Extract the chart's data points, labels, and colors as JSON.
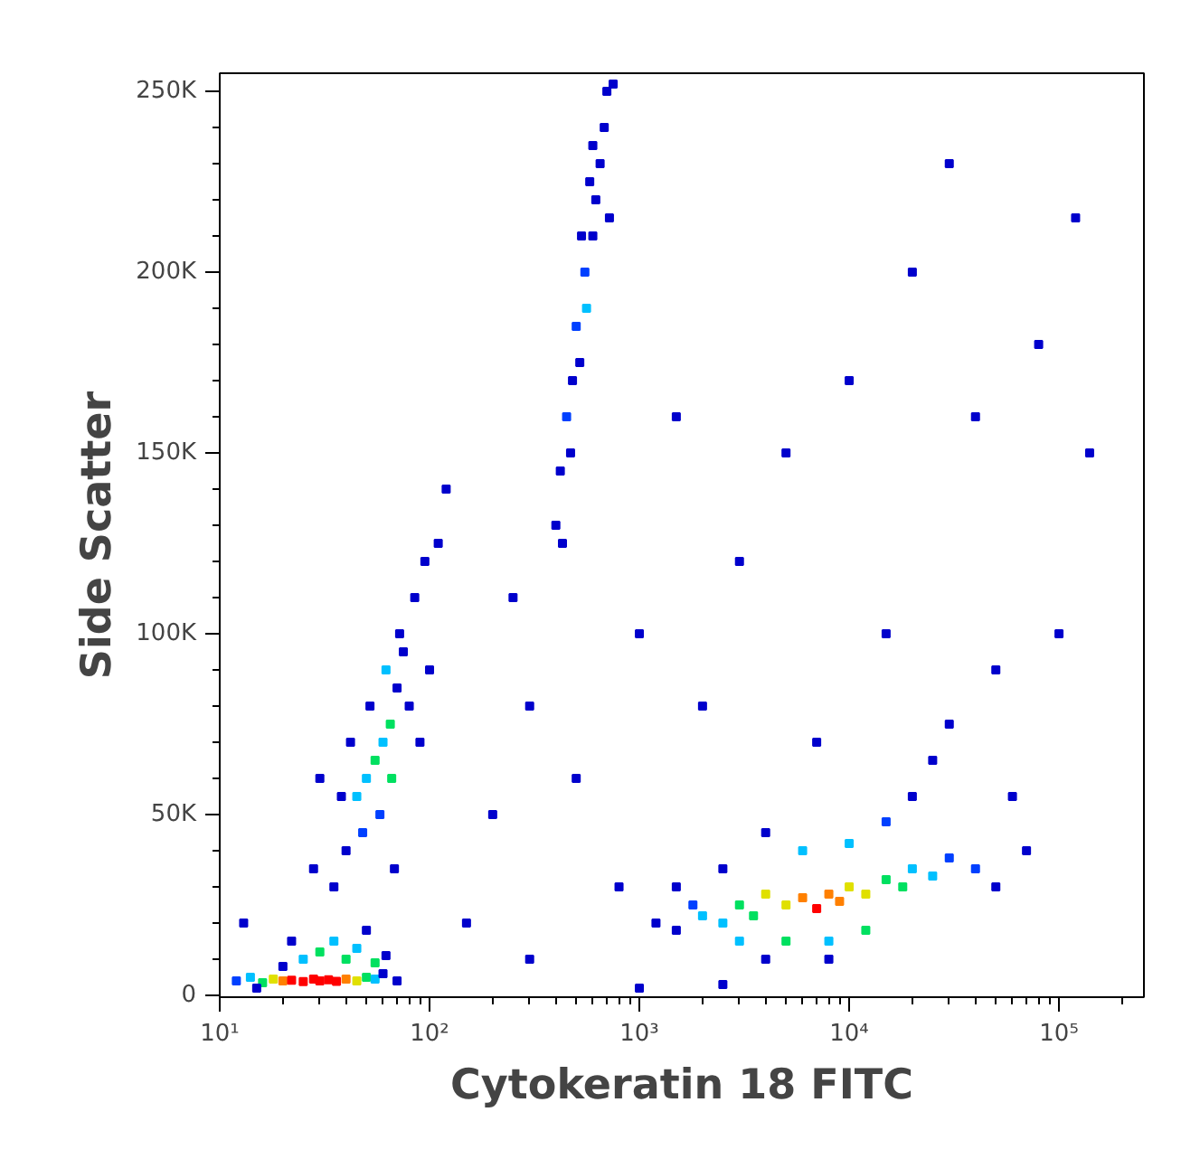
{
  "chart_data": {
    "type": "scatter",
    "xlabel": "Cytokeratin 18 FITC",
    "ylabel": "Side Scatter",
    "log": "x",
    "grid": false,
    "marker": "square",
    "xlim": [
      10,
      254000
    ],
    "ylim": [
      -500,
      255000
    ],
    "xticks": [
      {
        "value": 10,
        "label": "10¹"
      },
      {
        "value": 100,
        "label": "10²"
      },
      {
        "value": 1000,
        "label": "10³"
      },
      {
        "value": 10000,
        "label": "10⁴"
      },
      {
        "value": 100000,
        "label": "10⁵"
      }
    ],
    "yticks": [
      {
        "value": 0,
        "label": "0"
      },
      {
        "value": 50000,
        "label": "50K"
      },
      {
        "value": 100000,
        "label": "100K"
      },
      {
        "value": 150000,
        "label": "150K"
      },
      {
        "value": 200000,
        "label": "200K"
      },
      {
        "value": 250000,
        "label": "250K"
      }
    ],
    "series": [
      {
        "x": [
          12,
          14,
          16,
          18,
          20,
          22,
          25,
          28,
          30,
          33,
          36,
          40,
          45,
          50,
          55,
          60,
          20,
          25,
          30,
          35,
          40,
          45,
          50,
          55,
          15,
          22,
          62,
          70,
          13,
          35,
          40,
          45,
          50,
          55,
          60,
          65,
          58,
          48,
          70,
          75,
          72,
          80,
          62,
          52,
          42,
          38,
          85,
          95,
          110,
          30,
          100,
          90,
          68,
          28,
          120,
          66,
          400,
          420,
          450,
          480,
          500,
          520,
          550,
          560,
          600,
          620,
          650,
          680,
          700,
          750,
          580,
          470,
          530,
          720,
          430,
          1200,
          1500,
          1800,
          2000,
          2500,
          3000,
          3500,
          4000,
          5000,
          6000,
          7000,
          8000,
          9000,
          10000,
          12000,
          15000,
          18000,
          20000,
          25000,
          30000,
          40000,
          50000,
          3000,
          5000,
          8000,
          12000,
          6000,
          10000,
          15000,
          4000,
          20000,
          25000,
          30000,
          2500,
          1500,
          60000,
          70000,
          8000,
          4000,
          200,
          300,
          250,
          500,
          800,
          1000,
          2000,
          3000,
          5000,
          10000,
          20000,
          40000,
          80000,
          120000,
          140000,
          100000,
          50000,
          15000,
          7000,
          1500,
          300,
          150,
          1000,
          2500,
          600,
          30000
        ],
        "values": [
          4000,
          5000,
          3500,
          4500,
          4000,
          4200,
          3800,
          4500,
          4000,
          4300,
          3900,
          4500,
          4000,
          5000,
          4500,
          6000,
          8000,
          10000,
          12000,
          15000,
          10000,
          13000,
          18000,
          9000,
          2000,
          15000,
          11000,
          4000,
          20000,
          30000,
          40000,
          55000,
          60000,
          65000,
          70000,
          75000,
          50000,
          45000,
          85000,
          95000,
          100000,
          80000,
          90000,
          80000,
          70000,
          55000,
          110000,
          120000,
          125000,
          60000,
          90000,
          70000,
          35000,
          35000,
          140000,
          60000,
          130000,
          145000,
          160000,
          170000,
          185000,
          175000,
          200000,
          190000,
          210000,
          220000,
          230000,
          240000,
          250000,
          252000,
          225000,
          150000,
          210000,
          215000,
          125000,
          20000,
          18000,
          25000,
          22000,
          20000,
          25000,
          22000,
          28000,
          25000,
          27000,
          24000,
          28000,
          26000,
          30000,
          28000,
          32000,
          30000,
          35000,
          33000,
          38000,
          35000,
          30000,
          15000,
          15000,
          15000,
          18000,
          40000,
          42000,
          48000,
          45000,
          55000,
          65000,
          75000,
          35000,
          30000,
          55000,
          40000,
          10000,
          10000,
          50000,
          80000,
          110000,
          60000,
          30000,
          100000,
          80000,
          120000,
          150000,
          170000,
          200000,
          160000,
          180000,
          215000,
          150000,
          100000,
          90000,
          100000,
          70000,
          160000,
          10000,
          20000,
          2000,
          3000,
          235000,
          230000
        ],
        "colors": [
          "#0040ff",
          "#00c0ff",
          "#00e060",
          "#e0e000",
          "#ff8000",
          "#ff0000",
          "#ff0000",
          "#ff0000",
          "#ff0000",
          "#ff0000",
          "#ff0000",
          "#ff8000",
          "#e0e000",
          "#00e060",
          "#00c0ff",
          "#0000cc",
          "#0000cc",
          "#00c0ff",
          "#00e060",
          "#00c0ff",
          "#00e060",
          "#00c0ff",
          "#0000cc",
          "#00e060",
          "#0000cc",
          "#0000cc",
          "#0000cc",
          "#0000cc",
          "#0000cc",
          "#0000cc",
          "#0000cc",
          "#00c0ff",
          "#00c0ff",
          "#00e060",
          "#00c0ff",
          "#00e060",
          "#0040ff",
          "#0040ff",
          "#0000cc",
          "#0000cc",
          "#0000cc",
          "#0000cc",
          "#00c0ff",
          "#0000cc",
          "#0000cc",
          "#0000cc",
          "#0000cc",
          "#0000cc",
          "#0000cc",
          "#0000cc",
          "#0000cc",
          "#0000cc",
          "#0000cc",
          "#0000cc",
          "#0000cc",
          "#00e060",
          "#0000cc",
          "#0000cc",
          "#0040ff",
          "#0000cc",
          "#0040ff",
          "#0000cc",
          "#0040ff",
          "#00c0ff",
          "#0000cc",
          "#0000cc",
          "#0000cc",
          "#0000cc",
          "#0000cc",
          "#0000cc",
          "#0000cc",
          "#0000cc",
          "#0000cc",
          "#0000cc",
          "#0000cc",
          "#0000cc",
          "#0000cc",
          "#0040ff",
          "#00c0ff",
          "#00c0ff",
          "#00e060",
          "#00e060",
          "#e0e000",
          "#e0e000",
          "#ff8000",
          "#ff0000",
          "#ff8000",
          "#ff8000",
          "#e0e000",
          "#e0e000",
          "#00e060",
          "#00e060",
          "#00c0ff",
          "#00c0ff",
          "#0040ff",
          "#0040ff",
          "#0000cc",
          "#00c0ff",
          "#00e060",
          "#00c0ff",
          "#00e060",
          "#00c0ff",
          "#00c0ff",
          "#0040ff",
          "#0000cc",
          "#0000cc",
          "#0000cc",
          "#0000cc",
          "#0000cc",
          "#0000cc",
          "#0000cc",
          "#0000cc",
          "#0000cc",
          "#0000cc",
          "#0000cc",
          "#0000cc",
          "#0000cc",
          "#0000cc",
          "#0000cc",
          "#0000cc",
          "#0000cc",
          "#0000cc",
          "#0000cc",
          "#0000cc",
          "#0000cc",
          "#0000cc",
          "#0000cc",
          "#0000cc",
          "#0000cc",
          "#0000cc",
          "#0000cc",
          "#0000cc",
          "#0000cc",
          "#0000cc",
          "#0000cc",
          "#0000cc",
          "#0000cc",
          "#0000cc",
          "#0000cc",
          "#0000cc"
        ]
      }
    ]
  }
}
